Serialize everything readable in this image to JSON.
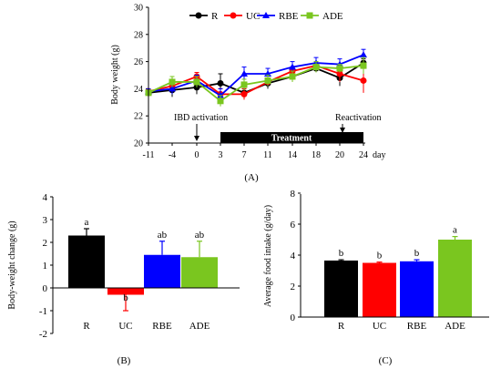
{
  "colors": {
    "R": "#000000",
    "UC": "#ff0000",
    "RBE": "#0000ff",
    "ADE": "#7ac61f",
    "treatment_bar": "#000000"
  },
  "chart_data": [
    {
      "panel_label": "(A)",
      "type": "line",
      "ylabel": "Body weight (g)",
      "xlabel": "day",
      "ylim": [
        20,
        30
      ],
      "yticks": [
        20,
        22,
        24,
        26,
        28,
        30
      ],
      "x": [
        "-11",
        "-4",
        "0",
        "3",
        "7",
        "11",
        "14",
        "18",
        "20",
        "24"
      ],
      "legend_position": "top",
      "series": [
        {
          "name": "R",
          "color": "#000000",
          "marker": "circle",
          "values": [
            23.7,
            23.9,
            24.1,
            24.4,
            23.7,
            24.4,
            24.9,
            25.5,
            24.8,
            25.9
          ],
          "errors": [
            0.2,
            0.5,
            0.5,
            0.7,
            0.3,
            0.4,
            0.4,
            0.3,
            0.6,
            0.3
          ]
        },
        {
          "name": "UC",
          "color": "#ff0000",
          "marker": "circle",
          "values": [
            23.8,
            24.2,
            24.9,
            23.6,
            23.6,
            24.5,
            25.3,
            25.7,
            25.1,
            24.6
          ],
          "errors": [
            0.2,
            0.3,
            0.3,
            0.4,
            0.4,
            0.3,
            0.3,
            0.3,
            0.6,
            0.9
          ]
        },
        {
          "name": "RBE",
          "color": "#0000ff",
          "marker": "triangle",
          "values": [
            23.8,
            24.0,
            24.6,
            23.5,
            25.1,
            25.1,
            25.6,
            25.9,
            25.8,
            26.5
          ],
          "errors": [
            0.2,
            0.4,
            0.4,
            0.5,
            0.5,
            0.4,
            0.4,
            0.4,
            0.4,
            0.4
          ]
        },
        {
          "name": "ADE",
          "color": "#7ac61f",
          "marker": "square",
          "values": [
            23.7,
            24.5,
            24.5,
            23.1,
            24.3,
            24.6,
            24.9,
            25.6,
            25.5,
            25.7
          ],
          "errors": [
            0.2,
            0.4,
            0.4,
            0.4,
            0.4,
            0.4,
            0.4,
            0.4,
            0.3,
            0.6
          ]
        }
      ],
      "annotations": {
        "activation": "IBD activation",
        "treatment": "Treatment",
        "reactivation": "Reactivation"
      }
    },
    {
      "panel_label": "(B)",
      "type": "bar",
      "ylabel": "Body-weight change (g)",
      "ylim": [
        -2,
        4
      ],
      "yticks": [
        -2,
        -1,
        0,
        1,
        2,
        3,
        4
      ],
      "categories": [
        "R",
        "UC",
        "RBE",
        "ADE"
      ],
      "values": [
        2.3,
        -0.3,
        1.45,
        1.35
      ],
      "errors": [
        0.3,
        0.7,
        0.6,
        0.7
      ],
      "significance": [
        "a",
        "b",
        "ab",
        "ab"
      ],
      "bar_colors": [
        "#000000",
        "#ff0000",
        "#0000ff",
        "#7ac61f"
      ]
    },
    {
      "panel_label": "(C)",
      "type": "bar",
      "ylabel": "Average food intake (g/day)",
      "ylim": [
        0,
        8
      ],
      "yticks": [
        0,
        2,
        4,
        6,
        8
      ],
      "categories": [
        "R",
        "UC",
        "RBE",
        "ADE"
      ],
      "values": [
        3.65,
        3.5,
        3.6,
        5.0
      ],
      "errors": [
        0.05,
        0.05,
        0.1,
        0.2
      ],
      "significance": [
        "b",
        "b",
        "b",
        "a"
      ],
      "bar_colors": [
        "#000000",
        "#ff0000",
        "#0000ff",
        "#7ac61f"
      ]
    }
  ]
}
